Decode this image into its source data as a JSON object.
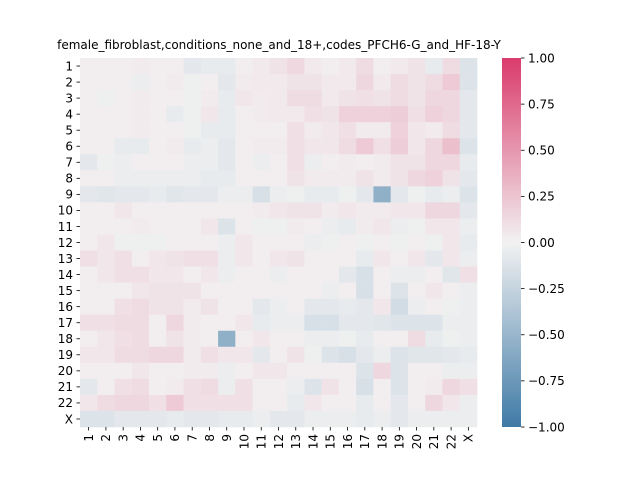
{
  "chart_data": {
    "type": "heatmap",
    "title": "female_fibroblast,conditions_none_and_18+,codes_PFCH6-G_and_HF-18-Y",
    "xlabel": "",
    "ylabel": "",
    "x_categories": [
      "1",
      "2",
      "3",
      "4",
      "5",
      "6",
      "7",
      "8",
      "9",
      "10",
      "11",
      "12",
      "13",
      "14",
      "15",
      "16",
      "17",
      "18",
      "19",
      "20",
      "21",
      "22",
      "X"
    ],
    "y_categories": [
      "1",
      "2",
      "3",
      "4",
      "5",
      "6",
      "7",
      "8",
      "9",
      "10",
      "11",
      "12",
      "13",
      "14",
      "15",
      "16",
      "17",
      "18",
      "19",
      "20",
      "21",
      "22",
      "X"
    ],
    "colorbar": {
      "min": -1.0,
      "max": 1.0,
      "ticks": [
        1.0,
        0.75,
        0.5,
        0.25,
        0.0,
        -0.25,
        -0.5,
        -0.75,
        -1.0
      ],
      "tick_labels": [
        "1.00",
        "0.75",
        "0.50",
        "0.25",
        "0.00",
        "−0.25",
        "−0.50",
        "−0.75",
        "−1.00"
      ],
      "color_low": "#3f7aa6",
      "color_mid": "#f2f2f2",
      "color_high": "#da3b6c"
    },
    "values": [
      [
        0.02,
        0.02,
        0.02,
        0.04,
        0.02,
        0.02,
        -0.08,
        -0.06,
        -0.06,
        0.02,
        0.05,
        0.08,
        0.14,
        0.05,
        0.02,
        0.05,
        0.12,
        0.02,
        0.05,
        0.08,
        -0.06,
        0.12,
        -0.12
      ],
      [
        0.02,
        0.02,
        0.02,
        -0.04,
        0.02,
        0.04,
        -0.02,
        0.02,
        -0.08,
        0.04,
        0.05,
        0.05,
        0.08,
        0.08,
        0.05,
        0.05,
        0.15,
        0.05,
        0.12,
        0.08,
        0.12,
        0.22,
        -0.12
      ],
      [
        0.02,
        -0.02,
        0.02,
        0.04,
        0.02,
        0.02,
        -0.02,
        0.04,
        -0.06,
        0.06,
        0.04,
        0.05,
        0.12,
        0.12,
        0.05,
        0.08,
        0.1,
        0.08,
        0.12,
        0.08,
        0.15,
        0.15,
        -0.08
      ],
      [
        0.02,
        0.02,
        0.02,
        0.04,
        0.02,
        -0.06,
        -0.02,
        0.06,
        -0.06,
        0.02,
        0.04,
        0.05,
        0.05,
        0.1,
        0.08,
        0.18,
        0.18,
        0.18,
        0.2,
        0.1,
        0.18,
        0.15,
        -0.08
      ],
      [
        0.02,
        0.02,
        0.02,
        0.04,
        0.02,
        0.02,
        -0.02,
        -0.06,
        -0.06,
        0.02,
        0.02,
        0.02,
        0.1,
        0.04,
        0.06,
        0.1,
        0.04,
        0.04,
        0.18,
        0.06,
        0.04,
        0.12,
        -0.08
      ],
      [
        0.02,
        0.02,
        -0.06,
        -0.06,
        0.02,
        0.04,
        -0.06,
        -0.04,
        -0.08,
        0.02,
        0.04,
        0.04,
        0.1,
        0.06,
        0.06,
        0.12,
        0.22,
        0.1,
        0.2,
        0.06,
        0.15,
        0.28,
        -0.12
      ],
      [
        -0.08,
        -0.02,
        -0.04,
        0.02,
        0.02,
        0.02,
        -0.04,
        -0.04,
        -0.08,
        0.02,
        -0.04,
        0.02,
        0.1,
        -0.04,
        0.02,
        0.04,
        0.02,
        0.04,
        0.08,
        0.08,
        0.15,
        0.15,
        -0.06
      ],
      [
        0.02,
        0.02,
        -0.04,
        -0.04,
        -0.04,
        -0.04,
        -0.04,
        -0.06,
        -0.06,
        0.02,
        0.02,
        0.02,
        0.08,
        0.04,
        0.04,
        0.04,
        0.08,
        0.04,
        0.08,
        0.15,
        0.18,
        0.08,
        -0.08
      ],
      [
        -0.08,
        -0.1,
        -0.08,
        -0.08,
        -0.06,
        -0.1,
        -0.08,
        -0.08,
        -0.04,
        -0.04,
        -0.15,
        -0.04,
        -0.02,
        -0.06,
        -0.06,
        -0.02,
        -0.08,
        -0.55,
        -0.08,
        -0.02,
        -0.06,
        -0.04,
        -0.12
      ],
      [
        0.02,
        0.02,
        0.06,
        0.02,
        0.02,
        0.02,
        0.02,
        0.02,
        0.02,
        0.02,
        0.04,
        0.06,
        0.08,
        0.08,
        0.04,
        0.06,
        0.04,
        0.04,
        0.06,
        0.06,
        0.15,
        0.15,
        -0.08
      ],
      [
        0.02,
        0.02,
        0.02,
        0.04,
        0.02,
        0.02,
        0.02,
        0.06,
        -0.12,
        0.02,
        -0.02,
        -0.02,
        0.04,
        0.02,
        -0.04,
        -0.06,
        0.04,
        0.06,
        -0.04,
        -0.02,
        0.06,
        0.06,
        -0.04
      ],
      [
        0.02,
        0.06,
        -0.02,
        -0.02,
        -0.02,
        0.02,
        0.02,
        0.02,
        -0.04,
        0.06,
        0.02,
        0.02,
        0.02,
        -0.04,
        -0.02,
        0.02,
        -0.02,
        0.02,
        -0.02,
        0.02,
        -0.02,
        0.06,
        -0.06
      ],
      [
        0.1,
        0.06,
        0.1,
        0.02,
        0.06,
        0.08,
        0.1,
        0.1,
        -0.04,
        0.06,
        0.02,
        0.06,
        0.08,
        0.02,
        0.02,
        0.02,
        -0.06,
        0.06,
        0.02,
        0.06,
        -0.08,
        0.06,
        -0.04
      ],
      [
        0.02,
        0.06,
        0.1,
        0.1,
        0.06,
        0.06,
        0.02,
        0.06,
        -0.04,
        0.02,
        0.02,
        -0.04,
        0.02,
        0.02,
        0.02,
        -0.08,
        -0.15,
        0.02,
        -0.04,
        -0.04,
        0.02,
        -0.1,
        0.1
      ],
      [
        0.02,
        0.02,
        0.02,
        0.06,
        0.08,
        0.08,
        0.08,
        0.02,
        0.02,
        0.02,
        0.02,
        0.02,
        0.02,
        0.02,
        -0.04,
        0.02,
        -0.15,
        0.02,
        -0.12,
        0.02,
        0.06,
        0.02,
        -0.04
      ],
      [
        0.02,
        0.02,
        0.1,
        0.12,
        0.08,
        0.08,
        0.04,
        0.08,
        0.02,
        0.02,
        -0.08,
        -0.04,
        0.02,
        -0.08,
        -0.08,
        -0.06,
        -0.08,
        0.06,
        -0.18,
        -0.04,
        0.02,
        -0.02,
        -0.04
      ],
      [
        0.1,
        0.1,
        0.12,
        0.12,
        0.02,
        0.15,
        0.04,
        0.02,
        0.02,
        0.06,
        -0.06,
        -0.04,
        -0.04,
        -0.15,
        -0.15,
        -0.08,
        -0.08,
        -0.1,
        -0.12,
        -0.12,
        -0.12,
        -0.04,
        -0.04
      ],
      [
        0.02,
        0.06,
        0.1,
        0.12,
        0.02,
        0.08,
        0.04,
        0.02,
        -0.55,
        0.02,
        0.06,
        0.02,
        0.02,
        -0.04,
        -0.04,
        -0.02,
        -0.06,
        0.02,
        0.02,
        0.12,
        -0.06,
        -0.02,
        -0.04
      ],
      [
        0.06,
        0.06,
        0.12,
        0.12,
        0.15,
        0.15,
        0.04,
        0.1,
        0.06,
        0.06,
        -0.08,
        0.02,
        0.08,
        -0.02,
        -0.12,
        -0.15,
        -0.08,
        -0.04,
        -0.12,
        -0.1,
        -0.1,
        -0.08,
        -0.06
      ],
      [
        0.02,
        0.02,
        0.02,
        0.06,
        0.02,
        0.02,
        0.04,
        0.04,
        -0.04,
        0.02,
        0.06,
        0.06,
        0.02,
        0.02,
        0.02,
        0.02,
        -0.12,
        0.15,
        -0.12,
        0.02,
        0.02,
        -0.04,
        -0.04
      ],
      [
        -0.08,
        0.02,
        0.1,
        0.12,
        0.02,
        0.04,
        0.1,
        0.12,
        -0.04,
        0.1,
        0.02,
        0.02,
        -0.04,
        -0.12,
        0.08,
        0.02,
        -0.15,
        0.02,
        -0.12,
        0.02,
        0.04,
        0.15,
        0.1
      ],
      [
        0.06,
        0.12,
        0.15,
        0.15,
        0.1,
        0.22,
        0.1,
        0.1,
        0.1,
        0.1,
        0.02,
        0.02,
        -0.06,
        0.06,
        0.02,
        0.02,
        -0.06,
        0.02,
        -0.08,
        0.02,
        0.15,
        0.06,
        -0.04
      ],
      [
        -0.12,
        -0.12,
        -0.08,
        -0.08,
        -0.08,
        -0.06,
        -0.08,
        -0.08,
        -0.06,
        -0.06,
        -0.04,
        -0.08,
        -0.08,
        -0.04,
        -0.04,
        -0.04,
        -0.06,
        -0.04,
        -0.08,
        -0.04,
        -0.04,
        -0.04,
        -0.04
      ]
    ]
  }
}
